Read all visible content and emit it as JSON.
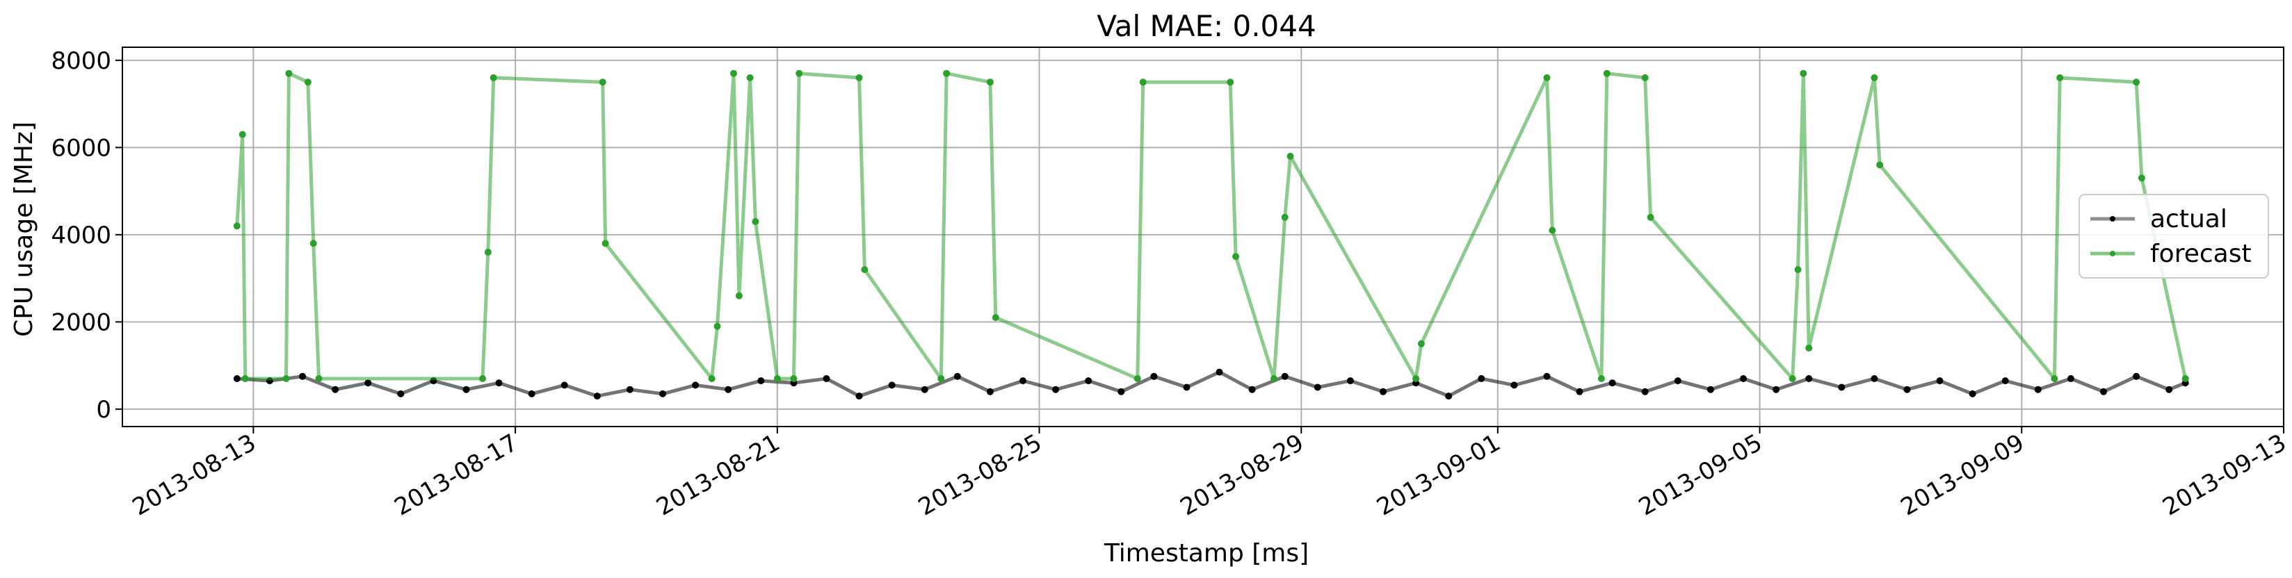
{
  "chart_data": {
    "type": "line",
    "title": "Val MAE: 0.044",
    "xlabel": "Timestamp [ms]",
    "ylabel": "CPU usage [MHz]",
    "xlim": [
      "2013-08-11",
      "2013-09-13"
    ],
    "ylim": [
      -400,
      8300
    ],
    "grid": true,
    "legend_position": "center-right",
    "x_ticks": [
      "2013-08-13",
      "2013-08-17",
      "2013-08-21",
      "2013-08-25",
      "2013-08-29",
      "2013-09-01",
      "2013-09-05",
      "2013-09-09",
      "2013-09-13"
    ],
    "y_ticks": [
      0,
      2000,
      4000,
      6000,
      8000
    ],
    "series": [
      {
        "name": "actual",
        "color": "#000000",
        "x": [
          "2013-08-12 18:00",
          "2013-08-13 06:00",
          "2013-08-13 18:00",
          "2013-08-14 06:00",
          "2013-08-14 18:00",
          "2013-08-15 06:00",
          "2013-08-15 18:00",
          "2013-08-16 06:00",
          "2013-08-16 18:00",
          "2013-08-17 06:00",
          "2013-08-17 18:00",
          "2013-08-18 06:00",
          "2013-08-18 18:00",
          "2013-08-19 06:00",
          "2013-08-19 18:00",
          "2013-08-20 06:00",
          "2013-08-20 18:00",
          "2013-08-21 06:00",
          "2013-08-21 18:00",
          "2013-08-22 06:00",
          "2013-08-22 18:00",
          "2013-08-23 06:00",
          "2013-08-23 18:00",
          "2013-08-24 06:00",
          "2013-08-24 18:00",
          "2013-08-25 06:00",
          "2013-08-25 18:00",
          "2013-08-26 06:00",
          "2013-08-26 18:00",
          "2013-08-27 06:00",
          "2013-08-27 18:00",
          "2013-08-28 06:00",
          "2013-08-28 18:00",
          "2013-08-29 06:00",
          "2013-08-29 18:00",
          "2013-08-30 06:00",
          "2013-08-30 18:00",
          "2013-08-31 06:00",
          "2013-08-31 18:00",
          "2013-09-01 06:00",
          "2013-09-01 18:00",
          "2013-09-02 06:00",
          "2013-09-02 18:00",
          "2013-09-03 06:00",
          "2013-09-03 18:00",
          "2013-09-04 06:00",
          "2013-09-04 18:00",
          "2013-09-05 06:00",
          "2013-09-05 18:00",
          "2013-09-06 06:00",
          "2013-09-06 18:00",
          "2013-09-07 06:00",
          "2013-09-07 18:00",
          "2013-09-08 06:00",
          "2013-09-08 18:00",
          "2013-09-09 06:00",
          "2013-09-09 18:00",
          "2013-09-10 06:00",
          "2013-09-10 18:00",
          "2013-09-11 06:00",
          "2013-09-11 12:00"
        ],
        "values": [
          700,
          650,
          750,
          450,
          600,
          350,
          650,
          450,
          600,
          350,
          550,
          300,
          450,
          350,
          550,
          450,
          650,
          600,
          700,
          300,
          550,
          450,
          750,
          400,
          650,
          450,
          650,
          400,
          750,
          500,
          850,
          450,
          750,
          500,
          650,
          400,
          600,
          300,
          700,
          550,
          750,
          400,
          600,
          400,
          650,
          450,
          700,
          450,
          700,
          500,
          700,
          450,
          650,
          350,
          650,
          450,
          700,
          400,
          750,
          450,
          600
        ]
      },
      {
        "name": "forecast",
        "color": "#2ca02c",
        "x": [
          "2013-08-12 18:00",
          "2013-08-12 20:00",
          "2013-08-12 21:00",
          "2013-08-13 12:00",
          "2013-08-13 13:00",
          "2013-08-13 20:00",
          "2013-08-13 22:00",
          "2013-08-14 00:00",
          "2013-08-16 12:00",
          "2013-08-16 14:00",
          "2013-08-16 16:00",
          "2013-08-18 08:00",
          "2013-08-18 09:00",
          "2013-08-20 00:00",
          "2013-08-20 02:00",
          "2013-08-20 08:00",
          "2013-08-20 10:00",
          "2013-08-20 14:00",
          "2013-08-20 16:00",
          "2013-08-21 00:00",
          "2013-08-21 06:00",
          "2013-08-21 08:00",
          "2013-08-22 06:00",
          "2013-08-22 08:00",
          "2013-08-23 12:00",
          "2013-08-23 14:00",
          "2013-08-24 06:00",
          "2013-08-24 08:00",
          "2013-08-26 12:00",
          "2013-08-26 14:00",
          "2013-08-27 22:00",
          "2013-08-28 00:00",
          "2013-08-28 14:00",
          "2013-08-28 18:00",
          "2013-08-28 20:00",
          "2013-08-30 18:00",
          "2013-08-30 20:00",
          "2013-09-01 18:00",
          "2013-09-01 20:00",
          "2013-09-02 14:00",
          "2013-09-02 16:00",
          "2013-09-03 06:00",
          "2013-09-03 08:00",
          "2013-09-05 12:00",
          "2013-09-05 14:00",
          "2013-09-05 16:00",
          "2013-09-05 18:00",
          "2013-09-06 18:00",
          "2013-09-06 20:00",
          "2013-09-09 12:00",
          "2013-09-09 14:00",
          "2013-09-10 18:00",
          "2013-09-10 20:00",
          "2013-09-11 12:00"
        ],
        "values": [
          4200,
          6300,
          700,
          700,
          7700,
          7500,
          3800,
          700,
          700,
          3600,
          7600,
          7500,
          3800,
          700,
          1900,
          7700,
          2600,
          7600,
          4300,
          700,
          700,
          7700,
          7600,
          3200,
          700,
          7700,
          7500,
          2100,
          700,
          7500,
          7500,
          3500,
          700,
          4400,
          5800,
          700,
          1500,
          7600,
          4100,
          700,
          7700,
          7600,
          4400,
          700,
          3200,
          7700,
          1400,
          7600,
          5600,
          700,
          7600,
          7500,
          5300,
          700
        ]
      }
    ]
  }
}
